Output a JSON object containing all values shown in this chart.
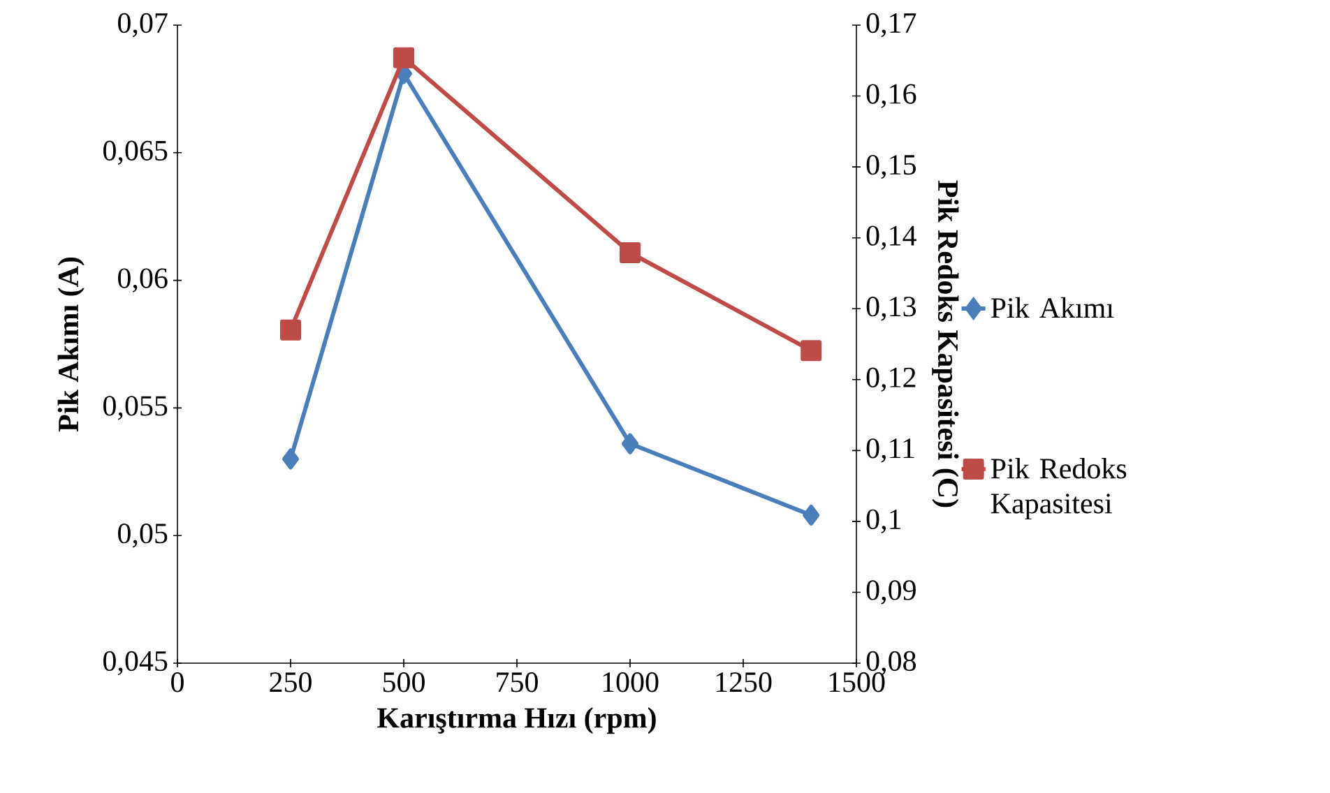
{
  "chart_data": {
    "type": "line",
    "xlabel": "Karıştırma Hızı (rpm)",
    "ylabel": "Pik Akımı (A)",
    "y2label": "Pik Redoks Kapasitesi (C)",
    "x": [
      250,
      500,
      1000,
      1400
    ],
    "series": [
      {
        "name": "Pik Akımı",
        "color": "#4a7ebb",
        "marker": "diamond",
        "values": [
          0.053,
          0.0681,
          0.0536,
          0.0508
        ]
      },
      {
        "name": "Pik Redoks Kapasitesi",
        "color": "#be4b48",
        "marker": "square",
        "axis": "y2",
        "values": [
          0.127,
          0.1654,
          0.1379,
          0.1241
        ]
      }
    ],
    "xlim": [
      0,
      1500
    ],
    "xticks": [
      0,
      250,
      500,
      750,
      1000,
      1250,
      1500
    ],
    "ylim": [
      0.045,
      0.07
    ],
    "yticks": [
      {
        "value": 0.045,
        "label": "0,045"
      },
      {
        "value": 0.05,
        "label": "0,05"
      },
      {
        "value": 0.055,
        "label": "0,055"
      },
      {
        "value": 0.06,
        "label": "0,06"
      },
      {
        "value": 0.065,
        "label": "0,065"
      },
      {
        "value": 0.07,
        "label": "0,07"
      }
    ],
    "y2lim": [
      0.08,
      0.17
    ],
    "y2ticks": [
      {
        "value": 0.08,
        "label": "0,08"
      },
      {
        "value": 0.09,
        "label": "0,09"
      },
      {
        "value": 0.1,
        "label": "0,1"
      },
      {
        "value": 0.11,
        "label": "0,11"
      },
      {
        "value": 0.12,
        "label": "0,12"
      },
      {
        "value": 0.13,
        "label": "0,13"
      },
      {
        "value": 0.14,
        "label": "0,14"
      },
      {
        "value": 0.15,
        "label": "0,15"
      },
      {
        "value": 0.16,
        "label": "0,16"
      },
      {
        "value": 0.17,
        "label": "0,17"
      }
    ],
    "legend": "right",
    "grid": false,
    "line_style": "solid"
  }
}
